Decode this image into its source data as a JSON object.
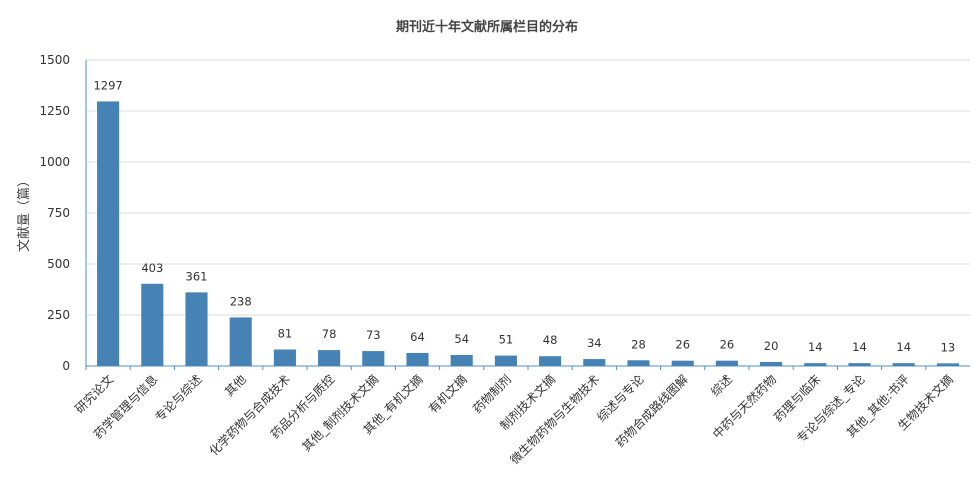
{
  "chart_data": {
    "type": "bar",
    "title": "期刊近十年文献所属栏目的分布",
    "xlabel": "",
    "ylabel": "文献量（篇）",
    "ylim": [
      0,
      1500
    ],
    "yticks": [
      0,
      250,
      500,
      750,
      1000,
      1250,
      1500
    ],
    "grid": true,
    "legend": "none",
    "bar_color": "#4682b4",
    "categories": [
      "研究论文",
      "药学管理与信息",
      "专论与综述",
      "其他",
      "化学药物与合成技术",
      "药品分析与质控",
      "其他_制剂技术文摘",
      "其他_有机文摘",
      "有机文摘",
      "药物制剂",
      "制剂技术文摘",
      "微生物药物与生物技术",
      "综述与专论",
      "药物合成路线图解",
      "综述",
      "中药与天然药物",
      "药理与临床",
      "专论与综述_专论",
      "其他_其他:书评",
      "生物技术文摘"
    ],
    "values": [
      1297,
      403,
      361,
      238,
      81,
      78,
      73,
      64,
      54,
      51,
      48,
      34,
      28,
      26,
      26,
      20,
      14,
      14,
      14,
      13
    ]
  }
}
